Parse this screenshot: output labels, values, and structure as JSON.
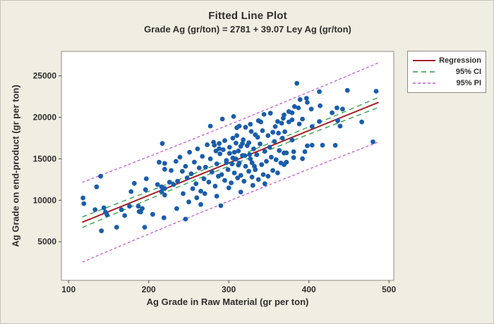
{
  "title": "Fitted Line Plot",
  "subtitle": "Grade Ag (gr/ton) = 2781 + 39.07 Ley Ag (gr/ton)",
  "colors": {
    "background": "#F0EDE3",
    "plot_background": "#FFFFFF",
    "frame": "#8f8b82",
    "text": "#2e2e2c",
    "regression": "#A22021",
    "ci": "#2C9B46",
    "pi": "#C45BD6",
    "points": "#1A5DAB"
  },
  "legend": {
    "items": [
      {
        "label": "Regression",
        "color": "#A22021",
        "dash": ""
      },
      {
        "label": "95% CI",
        "color": "#2C9B46",
        "dash": "7 5"
      },
      {
        "label": "95% PI",
        "color": "#C45BD6",
        "dash": "4 3"
      }
    ]
  },
  "chart_data": {
    "type": "scatter",
    "title": "Fitted Line Plot",
    "subtitle": "Grade Ag (gr/ton) = 2781 + 39.07 Ley Ag (gr/ton)",
    "xlabel": "Ag Grade in Raw Material (gr per ton)",
    "ylabel": "Ag Grade on end-product (gr per ton)",
    "xlim": [
      91,
      506
    ],
    "ylim": [
      350,
      27950
    ],
    "xticks": [
      100,
      200,
      300,
      400,
      500
    ],
    "yticks": [
      5000,
      10000,
      15000,
      20000,
      25000
    ],
    "grid": false,
    "legend_position": "top-right",
    "regression": {
      "intercept": 2781,
      "slope": 39.07,
      "x_start": 117,
      "x_end": 487
    },
    "ci_band": {
      "x": [
        117,
        150,
        200,
        250,
        310,
        370,
        420,
        487
      ],
      "upper": [
        7995,
        9216,
        11076,
        12962,
        15273,
        17650,
        19671,
        22417
      ],
      "lower": [
        6709,
        8068,
        10114,
        12136,
        14513,
        16824,
        18709,
        21199
      ]
    },
    "pi_band": {
      "x": [
        117,
        150,
        200,
        250,
        310,
        370,
        420,
        487
      ],
      "upper": [
        12161,
        13387,
        15264,
        17170,
        19493,
        21858,
        23859,
        26585
      ],
      "lower": [
        2543,
        3897,
        5926,
        7928,
        10293,
        12616,
        14521,
        17031
      ]
    },
    "points": [
      [
        118,
        10290
      ],
      [
        119,
        9600
      ],
      [
        133,
        8870
      ],
      [
        135,
        11620
      ],
      [
        140,
        12900
      ],
      [
        141,
        6320
      ],
      [
        144,
        9100
      ],
      [
        146,
        8590
      ],
      [
        148,
        8250
      ],
      [
        160,
        6750
      ],
      [
        166,
        8870
      ],
      [
        170,
        8160
      ],
      [
        176,
        9290
      ],
      [
        178,
        11050
      ],
      [
        182,
        12040
      ],
      [
        187,
        9290
      ],
      [
        188,
        8650
      ],
      [
        190,
        8590
      ],
      [
        192,
        9010
      ],
      [
        195,
        6750
      ],
      [
        196,
        11280
      ],
      [
        197,
        12600
      ],
      [
        205,
        8310
      ],
      [
        211,
        11900
      ],
      [
        213,
        14590
      ],
      [
        216,
        11620
      ],
      [
        216,
        11050
      ],
      [
        217,
        16850
      ],
      [
        219,
        7890
      ],
      [
        220,
        14450
      ],
      [
        220,
        13740
      ],
      [
        220,
        11420
      ],
      [
        220,
        10630
      ],
      [
        226,
        12180
      ],
      [
        235,
        9000
      ],
      [
        246,
        7740
      ],
      [
        250,
        9800
      ],
      [
        265,
        9500
      ],
      [
        290,
        9350
      ],
      [
        270,
        10800
      ],
      [
        228,
        13600
      ],
      [
        231,
        11900
      ],
      [
        234,
        14700
      ],
      [
        236,
        12300
      ],
      [
        239,
        15200
      ],
      [
        242,
        13500
      ],
      [
        243,
        10800
      ],
      [
        246,
        14100
      ],
      [
        248,
        12700
      ],
      [
        251,
        15800
      ],
      [
        253,
        13200
      ],
      [
        255,
        11400
      ],
      [
        257,
        14600
      ],
      [
        259,
        12000
      ],
      [
        261,
        16200
      ],
      [
        263,
        13900
      ],
      [
        265,
        11100
      ],
      [
        267,
        15300
      ],
      [
        269,
        12600
      ],
      [
        271,
        14000
      ],
      [
        273,
        16700
      ],
      [
        275,
        12200
      ],
      [
        277,
        15000
      ],
      [
        279,
        13400
      ],
      [
        281,
        17000
      ],
      [
        282,
        16650
      ],
      [
        283,
        11700
      ],
      [
        284,
        15950
      ],
      [
        285,
        14400
      ],
      [
        287,
        12900
      ],
      [
        288,
        16850
      ],
      [
        288,
        16230
      ],
      [
        289,
        15600
      ],
      [
        291,
        13100
      ],
      [
        292,
        19800
      ],
      [
        293,
        16100
      ],
      [
        295,
        12400
      ],
      [
        295,
        17200
      ],
      [
        297,
        14800
      ],
      [
        297,
        14530
      ],
      [
        299,
        13700
      ],
      [
        300,
        11500
      ],
      [
        301,
        15660
      ],
      [
        301,
        16400
      ],
      [
        303,
        12100
      ],
      [
        304,
        14390
      ],
      [
        305,
        15100
      ],
      [
        305,
        17500
      ],
      [
        306,
        20100
      ],
      [
        307,
        15800
      ],
      [
        307,
        13300
      ],
      [
        309,
        16900
      ],
      [
        309,
        14960
      ],
      [
        310,
        17800
      ],
      [
        311,
        12700
      ],
      [
        312,
        15950
      ],
      [
        312,
        14250
      ],
      [
        313,
        14500
      ],
      [
        315,
        16510
      ],
      [
        315,
        13000
      ],
      [
        315,
        11000
      ],
      [
        317,
        16850
      ],
      [
        317,
        15400
      ],
      [
        318,
        17300
      ],
      [
        319,
        12300
      ],
      [
        320,
        15380
      ],
      [
        321,
        14100
      ],
      [
        323,
        16600
      ],
      [
        325,
        16940
      ],
      [
        325,
        13500
      ],
      [
        326,
        15530
      ],
      [
        327,
        15000
      ],
      [
        328,
        18300
      ],
      [
        329,
        14530
      ],
      [
        329,
        12800
      ],
      [
        330,
        11800
      ],
      [
        331,
        16200
      ],
      [
        332,
        14110
      ],
      [
        333,
        13700
      ],
      [
        333,
        17900
      ],
      [
        335,
        15500
      ],
      [
        336,
        17600
      ],
      [
        337,
        12500
      ],
      [
        339,
        16800
      ],
      [
        341,
        14300
      ],
      [
        342,
        18400
      ],
      [
        343,
        13100
      ],
      [
        345,
        15900
      ],
      [
        345,
        12000
      ],
      [
        347,
        14700
      ],
      [
        349,
        12900
      ],
      [
        349,
        17800
      ],
      [
        351,
        16400
      ],
      [
        352,
        20500
      ],
      [
        353,
        15200
      ],
      [
        355,
        13600
      ],
      [
        355,
        18200
      ],
      [
        357,
        17100
      ],
      [
        358,
        18900
      ],
      [
        359,
        14900
      ],
      [
        361,
        13300
      ],
      [
        362,
        18100
      ],
      [
        363,
        16000
      ],
      [
        365,
        14500
      ],
      [
        367,
        17500
      ],
      [
        368,
        19900
      ],
      [
        369,
        15700
      ],
      [
        260,
        10300
      ],
      [
        285,
        10500
      ],
      [
        344,
        20360
      ],
      [
        337,
        19600
      ],
      [
        340,
        19450
      ],
      [
        327,
        19170
      ],
      [
        321,
        18800
      ],
      [
        313,
        18950
      ],
      [
        310,
        18750
      ],
      [
        361,
        19500
      ],
      [
        366,
        19300
      ],
      [
        277,
        18950
      ],
      [
        385,
        24100
      ],
      [
        413,
        23100
      ],
      [
        448,
        23250
      ],
      [
        484,
        23150
      ],
      [
        389,
        22150
      ],
      [
        397,
        22300
      ],
      [
        398,
        21800
      ],
      [
        382,
        21300
      ],
      [
        387,
        21150
      ],
      [
        375,
        20700
      ],
      [
        379,
        20550
      ],
      [
        369,
        20300
      ],
      [
        403,
        21000
      ],
      [
        414,
        21400
      ],
      [
        435,
        21150
      ],
      [
        442,
        21000
      ],
      [
        429,
        20550
      ],
      [
        413,
        19500
      ],
      [
        392,
        19800
      ],
      [
        379,
        19700
      ],
      [
        375,
        19450
      ],
      [
        388,
        19200
      ],
      [
        404,
        18900
      ],
      [
        436,
        19600
      ],
      [
        439,
        18950
      ],
      [
        466,
        19450
      ],
      [
        379,
        17270
      ],
      [
        398,
        16570
      ],
      [
        404,
        16650
      ],
      [
        417,
        16650
      ],
      [
        433,
        16630
      ],
      [
        381,
        15860
      ],
      [
        395,
        15860
      ],
      [
        372,
        15720
      ],
      [
        381,
        15150
      ],
      [
        392,
        15015
      ],
      [
        372,
        14590
      ],
      [
        369,
        14300
      ],
      [
        480,
        17050
      ],
      [
        370,
        18270
      ]
    ]
  }
}
